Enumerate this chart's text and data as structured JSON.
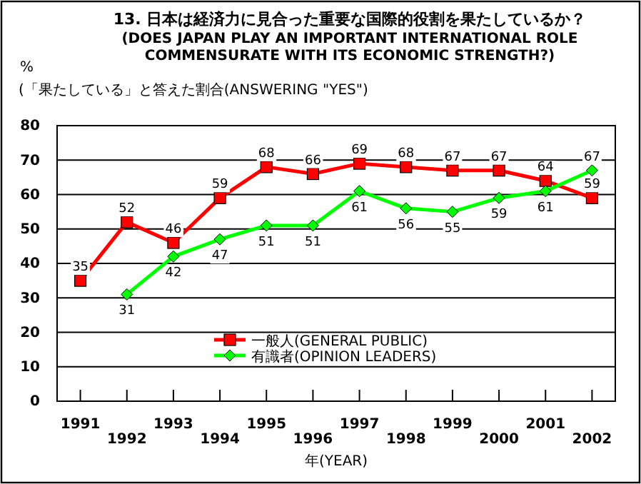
{
  "chart_data": {
    "type": "line",
    "title": "13. 日本は経済力に見合った重要な国際的役割を果たしているか？",
    "subtitle": "(DOES JAPAN PLAY AN IMPORTANT INTERNATIONAL ROLE COMMENSURATE WITH ITS ECONOMIC STRENGTH?)",
    "ylabel": "%",
    "xlabel": "年(YEAR)",
    "annotations": [
      "(「果たしている」と答えた割合(ANSWERING \"YES\")"
    ],
    "categories": [
      "1991",
      "1992",
      "1993",
      "1994",
      "1995",
      "1996",
      "1997",
      "1998",
      "1999",
      "2000",
      "2001",
      "2002"
    ],
    "series": [
      {
        "name": "一般人(GENERAL PUBLIC)",
        "color": "#ff0000",
        "marker": "square",
        "values": [
          35,
          52,
          46,
          59,
          68,
          66,
          69,
          68,
          67,
          67,
          64,
          59
        ]
      },
      {
        "name": "有識者(OPINION LEADERS)",
        "color": "#00ff00",
        "marker": "diamond",
        "values": [
          null,
          31,
          42,
          47,
          51,
          51,
          61,
          56,
          55,
          59,
          61,
          67
        ]
      }
    ],
    "ylim": [
      0,
      80
    ],
    "yticks": [
      0,
      10,
      20,
      30,
      40,
      50,
      60,
      70,
      80
    ],
    "grid": "y",
    "legend": "bottom",
    "data_labels": true
  }
}
